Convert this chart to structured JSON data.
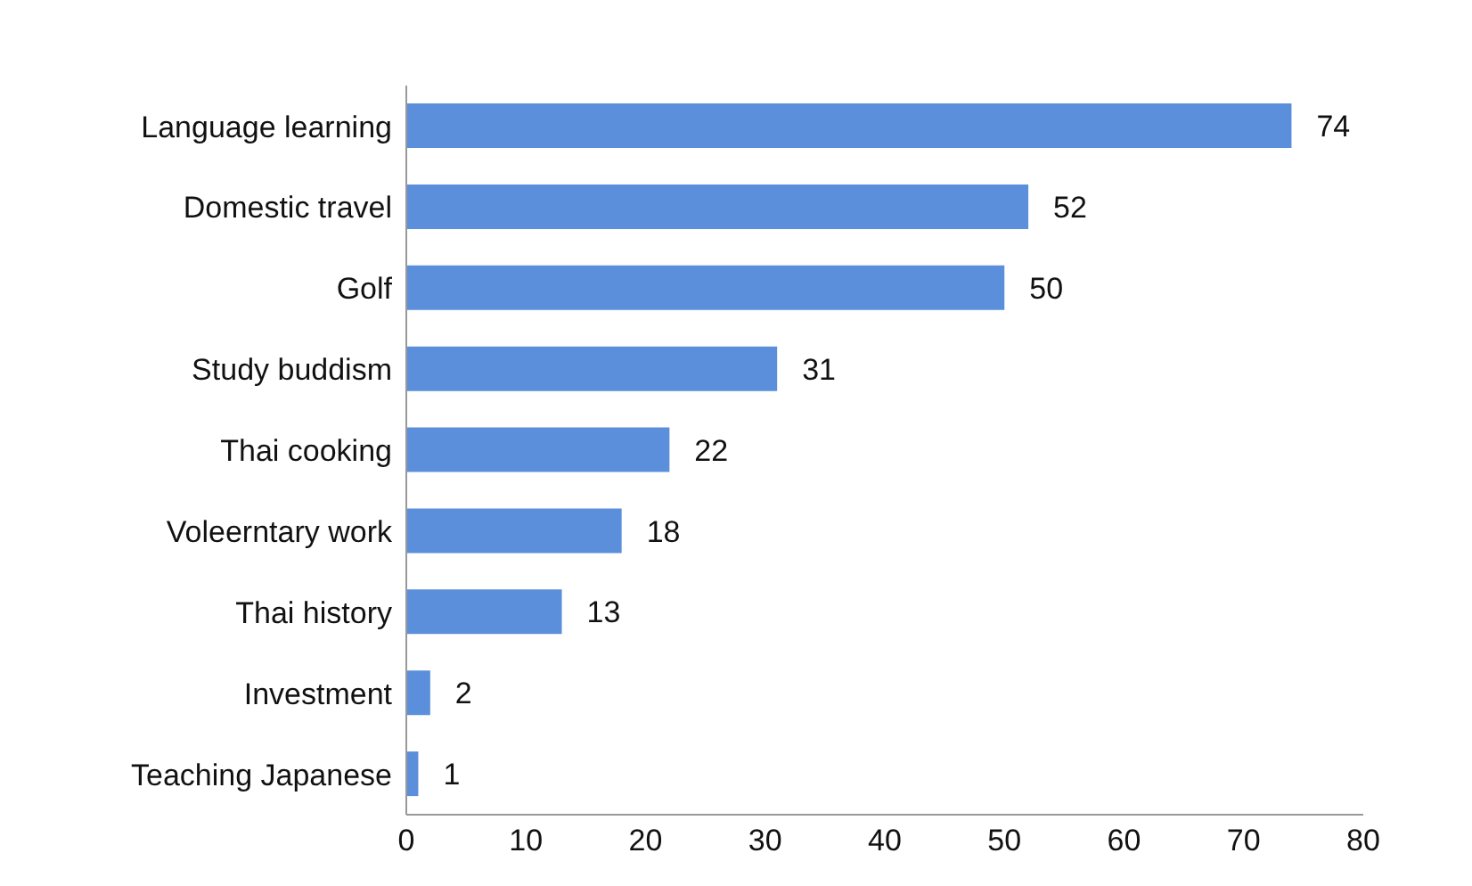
{
  "chart_data": {
    "type": "bar",
    "orientation": "horizontal",
    "categories": [
      "Language learning",
      "Domestic travel",
      "Golf",
      "Study buddism",
      "Thai cooking",
      "Voleerntary work",
      "Thai history",
      "Investment",
      "Teaching Japanese"
    ],
    "values": [
      74,
      52,
      50,
      31,
      22,
      18,
      13,
      2,
      1
    ],
    "color": "#5b8fdb",
    "xlim": [
      0,
      80
    ],
    "xticks": [
      0,
      10,
      20,
      30,
      40,
      50,
      60,
      70,
      80
    ],
    "grid": false,
    "data_labels": true
  }
}
